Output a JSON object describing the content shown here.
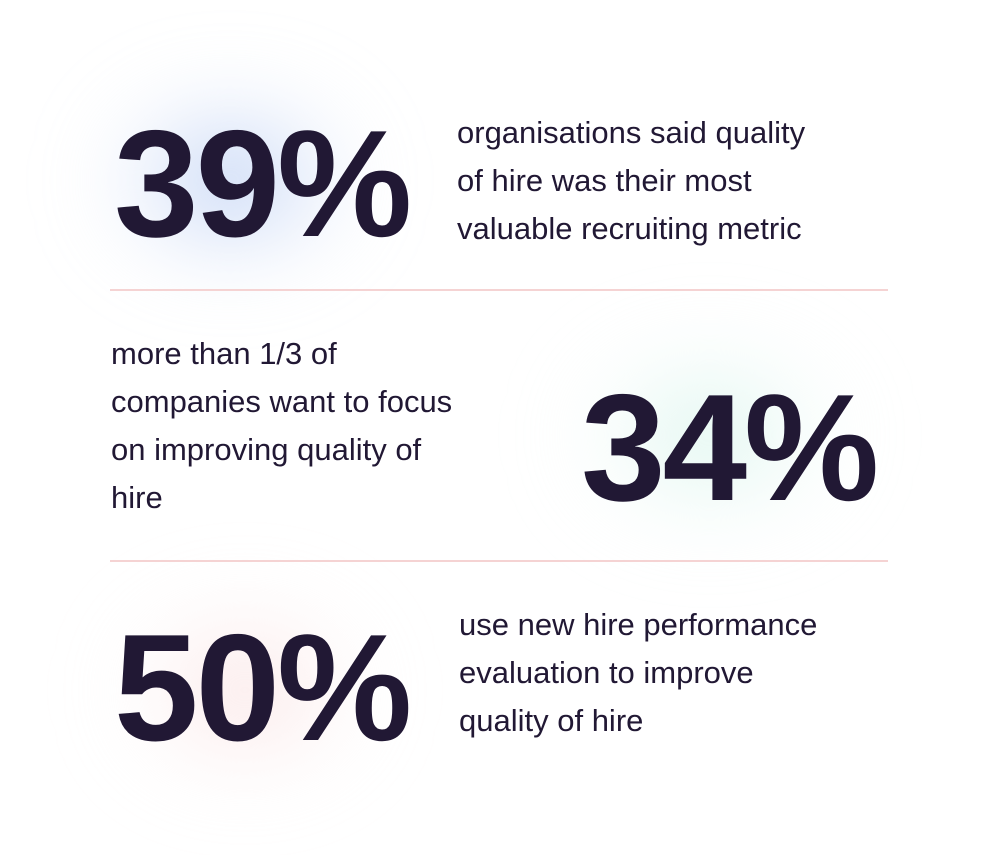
{
  "stats": [
    {
      "value": "39%",
      "lines": [
        "organisations said quality",
        "of hire was their most",
        "valuable recruiting metric"
      ],
      "glow_color": "#c3d4f4"
    },
    {
      "value": "34%",
      "lines": [
        "more than 1/3 of",
        "companies want to focus",
        "on improving quality of",
        "hire"
      ],
      "glow_color": "#dcf4ec"
    },
    {
      "value": "50%",
      "lines": [
        "use new hire performance",
        "evaluation to improve",
        "quality of hire"
      ],
      "glow_color": "#f8dcdc"
    }
  ],
  "colors": {
    "text": "#211834",
    "divider": "#f5d3d3"
  }
}
